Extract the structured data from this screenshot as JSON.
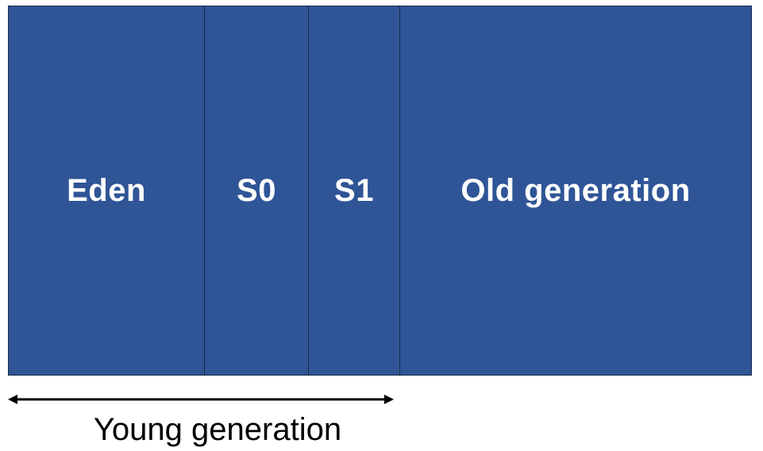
{
  "colors": {
    "region_fill": "#2f5597",
    "region_border": "#1b2b4a",
    "arrow": "#000000"
  },
  "heap": {
    "regions": [
      {
        "id": "eden",
        "label": "Eden"
      },
      {
        "id": "s0",
        "label": "S0"
      },
      {
        "id": "s1",
        "label": "S1"
      },
      {
        "id": "old",
        "label": "Old generation"
      }
    ]
  },
  "young_generation": {
    "label": "Young generation"
  }
}
